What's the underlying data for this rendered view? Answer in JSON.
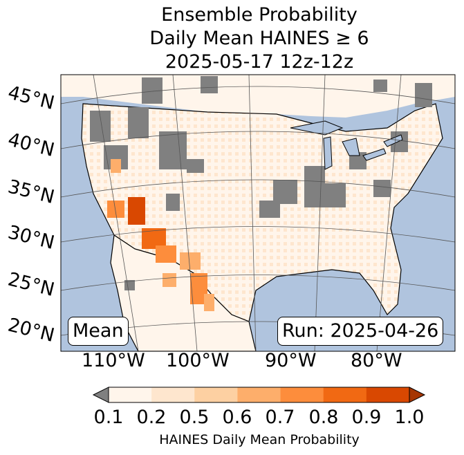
{
  "title": {
    "line1": "Ensemble Probability",
    "line2": "Daily Mean HAINES ≥ 6",
    "line3": "2025-05-17 12z-12z"
  },
  "map": {
    "lat_labels": [
      "45°N",
      "40°N",
      "35°N",
      "30°N",
      "25°N",
      "20°N"
    ],
    "lon_labels": [
      "110°W",
      "100°W",
      "90°W",
      "80°W"
    ],
    "mean_box": "Mean",
    "run_box": "Run: 2025-04-26",
    "colors": {
      "ocean": "#b0c4de",
      "missing": "#808080",
      "land_base": "#fff5eb"
    }
  },
  "colorbar": {
    "ticks": [
      "0.1",
      "0.2",
      "0.5",
      "0.6",
      "0.7",
      "0.8",
      "0.9",
      "1.0"
    ],
    "label": "HAINES Daily Mean Probability",
    "colors": [
      "#fff5eb",
      "#fee6ce",
      "#fdd0a2",
      "#fdae6b",
      "#fd8d3c",
      "#f16913",
      "#d94801"
    ],
    "under_color": "#808080",
    "over_color": "#a63603"
  }
}
